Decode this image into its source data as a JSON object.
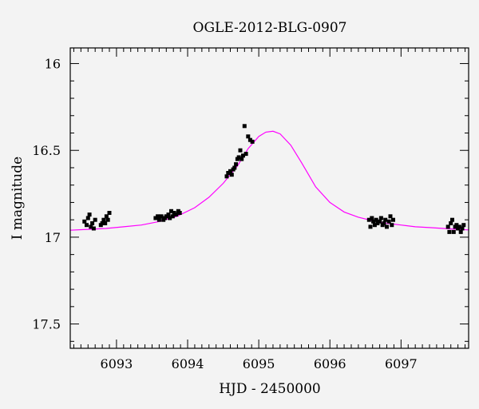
{
  "chart_data": {
    "type": "scatter",
    "title": "OGLE-2012-BLG-0907",
    "xlabel": "HJD - 2450000",
    "ylabel": "I magnitude",
    "xlim": [
      6092.35,
      6097.95
    ],
    "ylim": [
      17.64,
      15.91
    ],
    "y_inverted": true,
    "grid": false,
    "x_ticks": [
      6093,
      6094,
      6095,
      6096,
      6097
    ],
    "y_ticks": [
      16,
      16.5,
      17,
      17.5
    ],
    "x_tick_labels": [
      "6093",
      "6094",
      "6095",
      "6096",
      "6097"
    ],
    "y_tick_labels": [
      "16",
      "16.5",
      "17",
      "17.5"
    ],
    "colors": {
      "data": "#000000",
      "model": "#ff00ff",
      "background": "#f3f3f3"
    },
    "model": {
      "name": "",
      "color": "#ff00ff",
      "x": [
        6092.35,
        6092.6,
        6092.85,
        6093.1,
        6093.35,
        6093.6,
        6093.85,
        6094.1,
        6094.3,
        6094.5,
        6094.7,
        6094.85,
        6095.0,
        6095.1,
        6095.2,
        6095.3,
        6095.45,
        6095.6,
        6095.8,
        6096.0,
        6096.2,
        6096.4,
        6096.6,
        6096.8,
        6097.0,
        6097.2,
        6097.4,
        6097.6,
        6097.8,
        6097.95
      ],
      "y": [
        16.96,
        16.955,
        16.95,
        16.94,
        16.93,
        16.91,
        16.88,
        16.83,
        16.77,
        16.69,
        16.59,
        16.49,
        16.42,
        16.395,
        16.39,
        16.405,
        16.47,
        16.57,
        16.71,
        16.8,
        16.855,
        16.885,
        16.905,
        16.92,
        16.93,
        16.94,
        16.945,
        16.95,
        16.955,
        16.958
      ]
    },
    "series": [
      {
        "name": "",
        "color": "#000000",
        "x": [
          6092.55,
          6092.58,
          6092.6,
          6092.62,
          6092.64,
          6092.66,
          6092.68,
          6092.7,
          6092.78,
          6092.8,
          6092.82,
          6092.84,
          6092.86,
          6092.88,
          6092.9,
          6093.55,
          6093.58,
          6093.6,
          6093.63,
          6093.66,
          6093.68,
          6093.7,
          6093.73,
          6093.75,
          6093.77,
          6093.79,
          6093.81,
          6093.84,
          6093.87,
          6093.89,
          6094.55,
          6094.57,
          6094.6,
          6094.62,
          6094.64,
          6094.66,
          6094.68,
          6094.7,
          6094.72,
          6094.74,
          6094.76,
          6094.78,
          6094.8,
          6094.82,
          6094.85,
          6094.88,
          6094.91,
          6096.55,
          6096.57,
          6096.59,
          6096.61,
          6096.63,
          6096.65,
          6096.67,
          6096.7,
          6096.72,
          6096.74,
          6096.76,
          6096.78,
          6096.8,
          6096.83,
          6096.85,
          6096.87,
          6096.89,
          6097.66,
          6097.68,
          6097.7,
          6097.72,
          6097.74,
          6097.76,
          6097.78,
          6097.8,
          6097.82,
          6097.84,
          6097.86,
          6097.88
        ],
        "y": [
          16.91,
          16.93,
          16.89,
          16.87,
          16.94,
          16.92,
          16.95,
          16.9,
          16.93,
          16.92,
          16.9,
          16.92,
          16.88,
          16.9,
          16.86,
          16.89,
          16.88,
          16.9,
          16.88,
          16.9,
          16.89,
          16.88,
          16.87,
          16.89,
          16.85,
          16.88,
          16.86,
          16.87,
          16.85,
          16.86,
          16.65,
          16.63,
          16.62,
          16.64,
          16.61,
          16.6,
          16.58,
          16.55,
          16.54,
          16.5,
          16.55,
          16.53,
          16.36,
          16.52,
          16.42,
          16.44,
          16.45,
          16.9,
          16.94,
          16.89,
          16.91,
          16.93,
          16.9,
          16.92,
          16.91,
          16.89,
          16.93,
          16.92,
          16.9,
          16.94,
          16.91,
          16.88,
          16.93,
          16.9,
          16.94,
          16.97,
          16.92,
          16.9,
          16.97,
          16.94,
          16.93,
          16.95,
          16.94,
          16.97,
          16.95,
          16.93
        ]
      }
    ]
  }
}
